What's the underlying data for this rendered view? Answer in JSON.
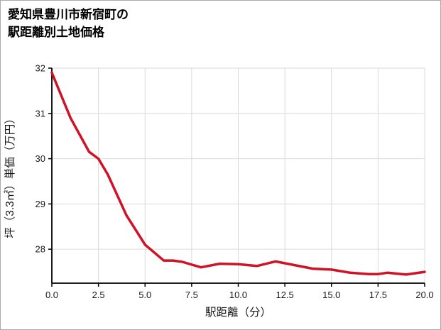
{
  "title": {
    "line1": "愛知県豊川市新宿町の",
    "line2": "駅距離別土地価格"
  },
  "chart_data": {
    "type": "line",
    "title": "愛知県豊川市新宿町の駅距離別土地価格",
    "xlabel": "駅距離（分）",
    "ylabel": "坪（3.3㎡）単価（万円）",
    "x": [
      0,
      1,
      2,
      2.5,
      3,
      4,
      5,
      6,
      6.5,
      7,
      8,
      9,
      10,
      11,
      12,
      13,
      14,
      15,
      16,
      17,
      17.5,
      18,
      19,
      20
    ],
    "y": [
      31.9,
      30.9,
      30.15,
      30.0,
      29.65,
      28.75,
      28.1,
      27.75,
      27.75,
      27.72,
      27.6,
      27.68,
      27.67,
      27.63,
      27.73,
      27.65,
      27.57,
      27.55,
      27.48,
      27.45,
      27.45,
      27.48,
      27.44,
      27.5
    ],
    "xlim": [
      0,
      20
    ],
    "ylim": [
      27.25,
      32
    ],
    "x_ticks": [
      0.0,
      2.5,
      5.0,
      7.5,
      10.0,
      12.5,
      15.0,
      17.5,
      20.0
    ],
    "y_ticks": [
      28,
      29,
      30,
      31,
      32
    ],
    "grid": true,
    "legend": "none",
    "line_color": "#cf1225",
    "grid_color": "#dadada",
    "axis_color": "#000000",
    "text_color": "#1a1a1a"
  }
}
